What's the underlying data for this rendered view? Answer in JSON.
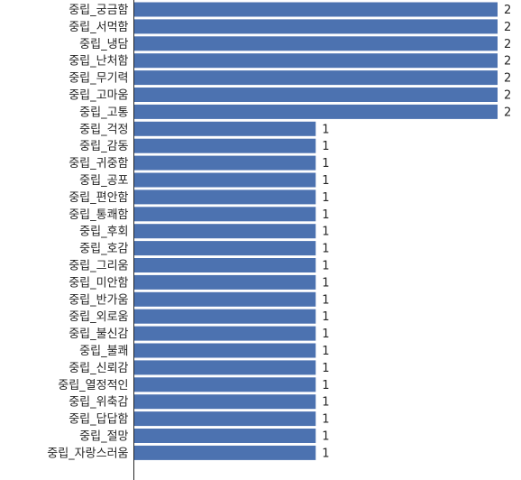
{
  "chart_data": {
    "type": "bar",
    "orientation": "horizontal",
    "categories": [
      "중립_궁금함",
      "중립_서먹함",
      "중립_냉담",
      "중립_난처함",
      "중립_무기력",
      "중립_고마움",
      "중립_고통",
      "중립_걱정",
      "중립_감동",
      "중립_귀중함",
      "중립_공포",
      "중립_편안함",
      "중립_통쾌함",
      "중립_후회",
      "중립_호감",
      "중립_그리움",
      "중립_미안함",
      "중립_반가움",
      "중립_외로움",
      "중립_불신감",
      "중립_불쾌",
      "중립_신뢰감",
      "중립_열정적인",
      "중립_위축감",
      "중립_답답함",
      "중립_절망",
      "중립_자랑스러움"
    ],
    "values": [
      2,
      2,
      2,
      2,
      2,
      2,
      2,
      1,
      1,
      1,
      1,
      1,
      1,
      1,
      1,
      1,
      1,
      1,
      1,
      1,
      1,
      1,
      1,
      1,
      1,
      1,
      1
    ],
    "xlim": [
      0,
      2
    ],
    "bar_color": "#4c72b0",
    "grid": false,
    "title": "",
    "xlabel": "",
    "ylabel": ""
  }
}
